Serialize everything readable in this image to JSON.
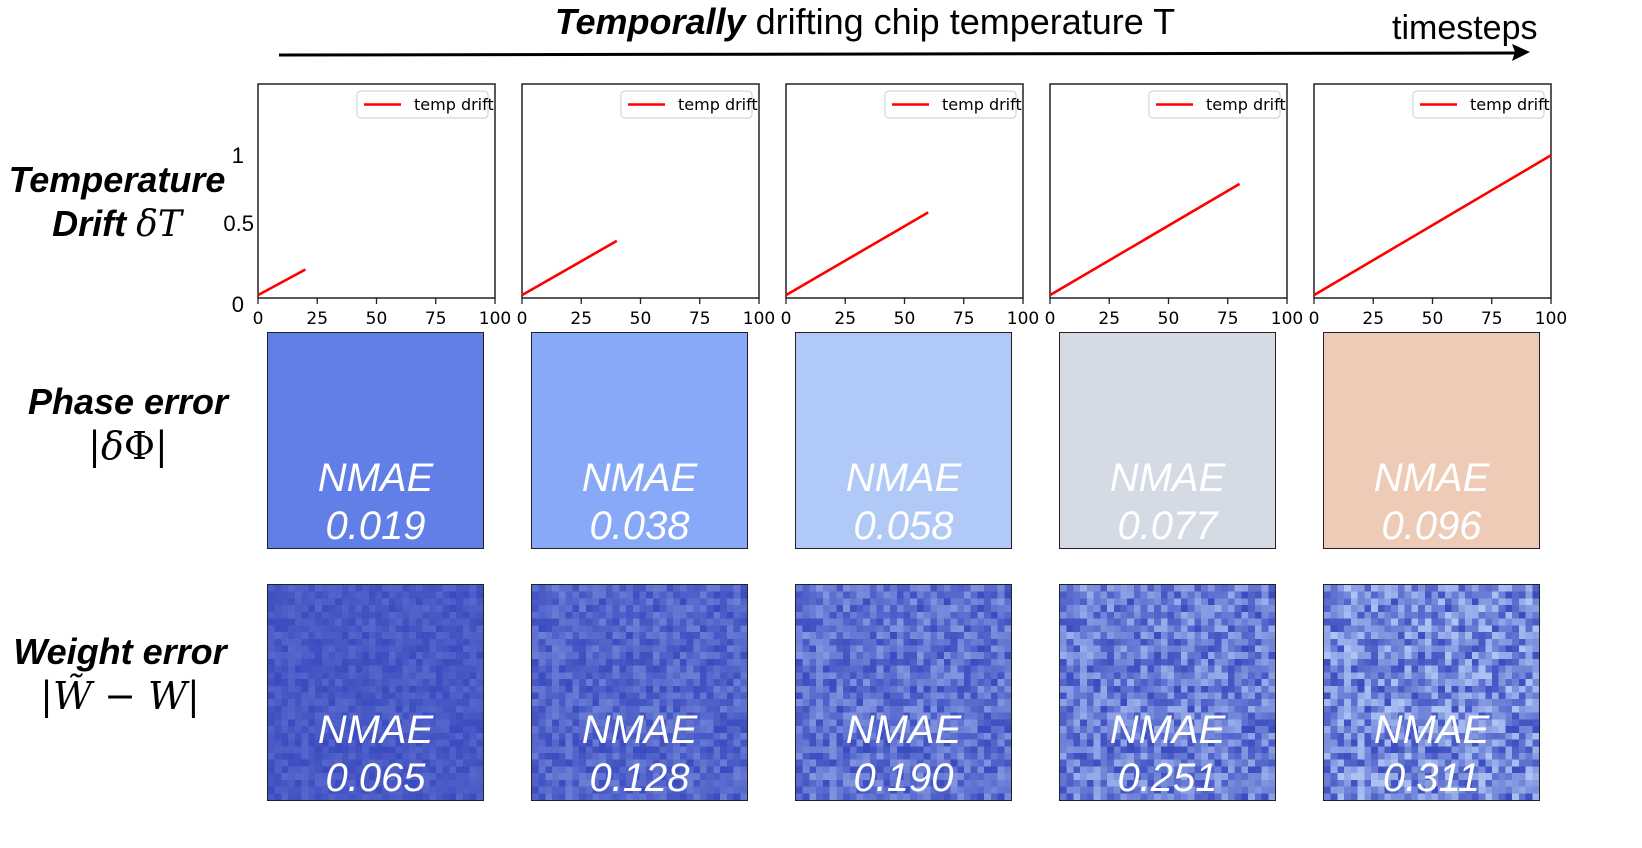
{
  "header": {
    "title_emphasis": "Temporally",
    "title_rest": " drifting chip temperature T",
    "arrow_label": "timesteps"
  },
  "row_labels": {
    "temperature": {
      "line1": "Temperature",
      "line2_text": "Drift ",
      "line2_math": "δT"
    },
    "phase": {
      "line1": "Phase error",
      "math_open": "|",
      "math_delta": "δ",
      "math_phi": "Φ",
      "math_close": "|"
    },
    "weight": {
      "line1": "Weight error",
      "math": "|W̃ − W|"
    }
  },
  "colors": {
    "line": "#ff0000",
    "phase_panels": [
      "#617fe6",
      "#88a8f8",
      "#b0c9f7",
      "#d5dbe4",
      "#eecbb7"
    ],
    "heatmap_palette_low": "#3b4cc0",
    "heatmap_palette_high": "#b9d0f9"
  },
  "chart_data": [
    {
      "type": "line",
      "title": "",
      "xlabel": "",
      "ylabel": "Temperature Drift δT",
      "xlim": [
        0,
        100
      ],
      "ylim": [
        0,
        1.5
      ],
      "xticks": [
        "0",
        "25",
        "50",
        "75",
        "100"
      ],
      "yticks": [
        "0",
        "0.5",
        "1"
      ],
      "ytick_values": [
        0,
        0.5,
        1
      ],
      "xtick_values": [
        0,
        25,
        50,
        75,
        100
      ],
      "legend": {
        "entries": [
          "temp drift"
        ],
        "position": "upper-right"
      },
      "panels": [
        {
          "series": [
            {
              "name": "temp drift",
              "x": [
                0,
                20
              ],
              "y": [
                0.02,
                0.2
              ]
            }
          ]
        },
        {
          "series": [
            {
              "name": "temp drift",
              "x": [
                0,
                40
              ],
              "y": [
                0.02,
                0.4
              ]
            }
          ]
        },
        {
          "series": [
            {
              "name": "temp drift",
              "x": [
                0,
                60
              ],
              "y": [
                0.02,
                0.6
              ]
            }
          ]
        },
        {
          "series": [
            {
              "name": "temp drift",
              "x": [
                0,
                80
              ],
              "y": [
                0.02,
                0.8
              ]
            }
          ]
        },
        {
          "series": [
            {
              "name": "temp drift",
              "x": [
                0,
                100
              ],
              "y": [
                0.02,
                1.0
              ]
            }
          ]
        }
      ]
    },
    {
      "type": "heatmap",
      "title": "Phase error |δΦ|",
      "panels": [
        {
          "metric": "NMAE",
          "value": "0.019"
        },
        {
          "metric": "NMAE",
          "value": "0.038"
        },
        {
          "metric": "NMAE",
          "value": "0.058"
        },
        {
          "metric": "NMAE",
          "value": "0.077"
        },
        {
          "metric": "NMAE",
          "value": "0.096"
        }
      ]
    },
    {
      "type": "heatmap",
      "title": "Weight error |W̃ − W|",
      "grid": [
        32,
        32
      ],
      "panels": [
        {
          "metric": "NMAE",
          "value": "0.065"
        },
        {
          "metric": "NMAE",
          "value": "0.128"
        },
        {
          "metric": "NMAE",
          "value": "0.190"
        },
        {
          "metric": "NMAE",
          "value": "0.251"
        },
        {
          "metric": "NMAE",
          "value": "0.311"
        }
      ]
    }
  ]
}
